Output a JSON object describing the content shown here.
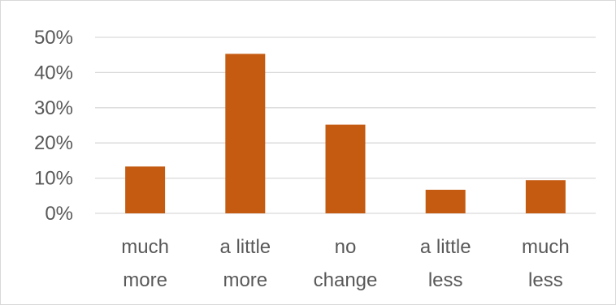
{
  "chart_data": {
    "type": "bar",
    "title": "",
    "xlabel": "",
    "ylabel": "",
    "categories": [
      [
        "much",
        "more"
      ],
      [
        "a little",
        "more"
      ],
      [
        "no",
        "change"
      ],
      [
        "a little",
        "less"
      ],
      [
        "much",
        "less"
      ]
    ],
    "values": [
      13.3,
      45.3,
      25.2,
      6.7,
      9.4
    ],
    "ylim": [
      0,
      50
    ],
    "yticks": [
      0,
      10,
      20,
      30,
      40,
      50
    ],
    "ytick_labels": [
      "0%",
      "10%",
      "20%",
      "30%",
      "40%",
      "50%"
    ],
    "bar_color": "#c55a11",
    "grid": true,
    "legend": "none"
  }
}
